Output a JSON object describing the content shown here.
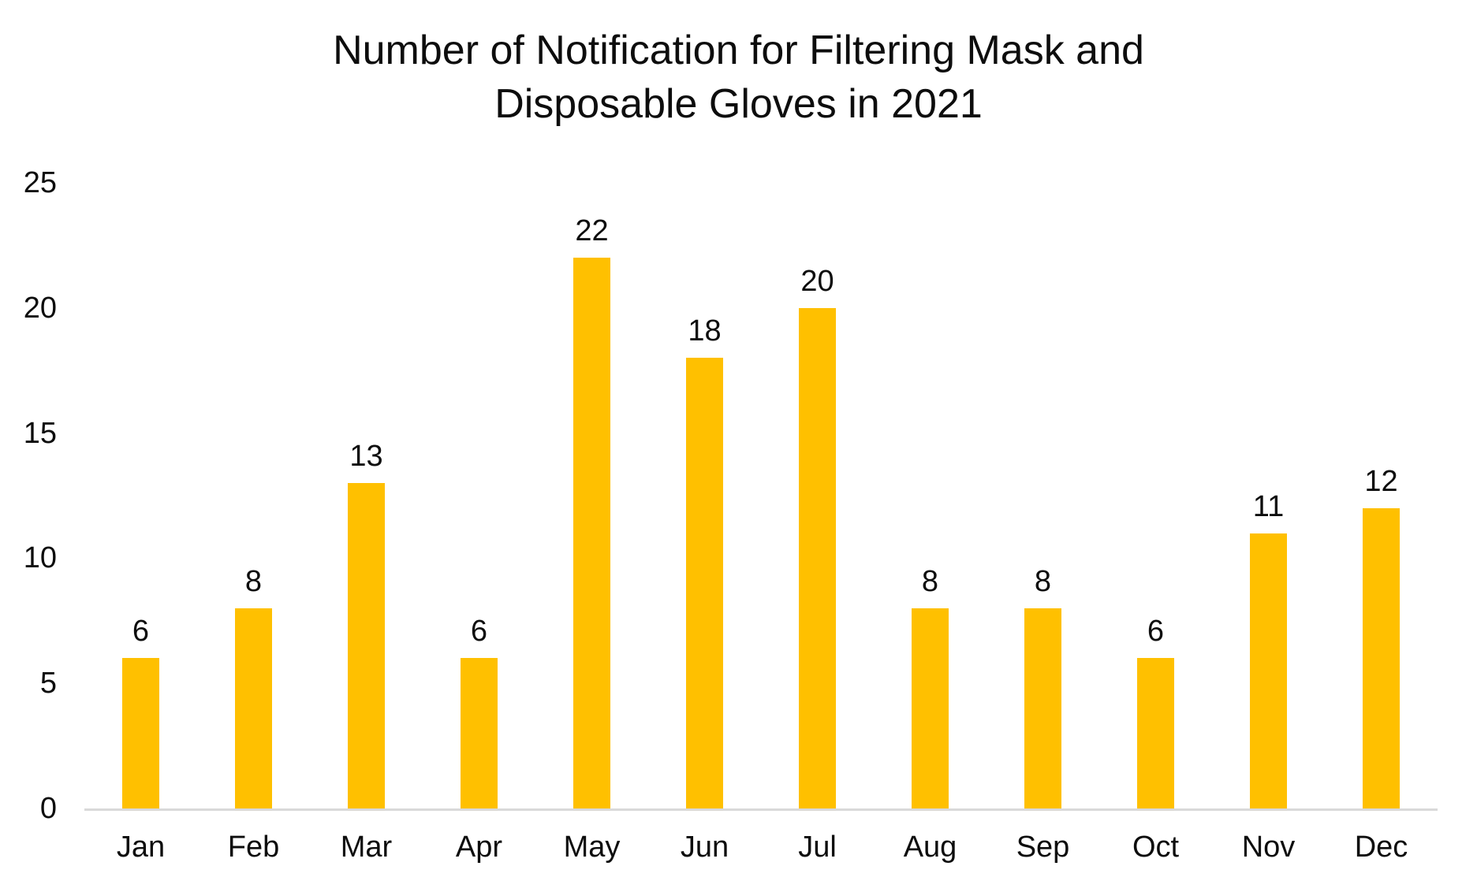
{
  "chart": {
    "title_lines": [
      "Number of Notification for Filtering Mask and",
      "Disposable Gloves in 2021"
    ]
  },
  "chart_data": {
    "type": "bar",
    "title": "Number of Notification for Filtering Mask and Disposable Gloves in 2021",
    "categories": [
      "Jan",
      "Feb",
      "Mar",
      "Apr",
      "May",
      "Jun",
      "Jul",
      "Aug",
      "Sep",
      "Oct",
      "Nov",
      "Dec"
    ],
    "values": [
      6,
      8,
      13,
      6,
      22,
      18,
      20,
      8,
      8,
      6,
      11,
      12
    ],
    "xlabel": "",
    "ylabel": "",
    "ylim": [
      0,
      25
    ],
    "y_ticks": [
      0,
      5,
      10,
      15,
      20,
      25
    ],
    "grid": false,
    "legend_position": "none",
    "data_labels": true,
    "bar_color": "#FFC000",
    "axis_line_color": "#D9D9D9",
    "text_color": "#000000",
    "background_color": "#FFFFFF"
  }
}
